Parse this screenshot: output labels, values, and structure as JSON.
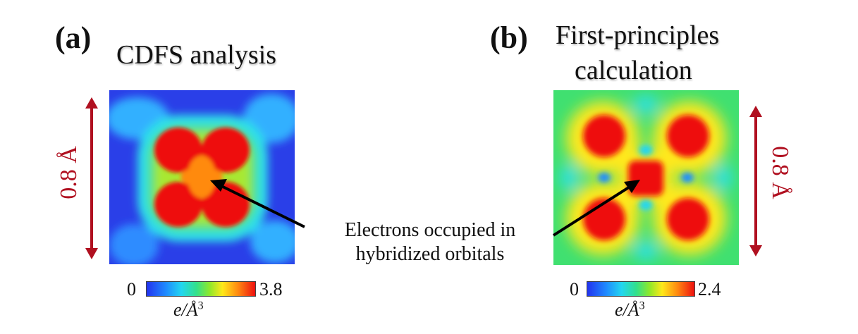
{
  "panel_a": {
    "label": "(a)",
    "title": "CDFS analysis",
    "scale_label": "0.8 Å",
    "colorbar": {
      "min": "0",
      "max": "3.8",
      "unit_base": "e/Å",
      "unit_exp": "3"
    }
  },
  "panel_b": {
    "label": "(b)",
    "title_line1": "First-principles",
    "title_line2": "calculation",
    "scale_label": "0.8 Å",
    "colorbar": {
      "min": "0",
      "max": "2.4",
      "unit_base": "e/Å",
      "unit_exp": "3"
    }
  },
  "annotation": {
    "line1": "Electrons occupied in",
    "line2": "hybridized orbitals"
  },
  "colors": {
    "scale_arrow": "#b01020",
    "annotation_arrow": "#000000",
    "map_low": "#2233ee",
    "map_high": "#ee1010"
  }
}
